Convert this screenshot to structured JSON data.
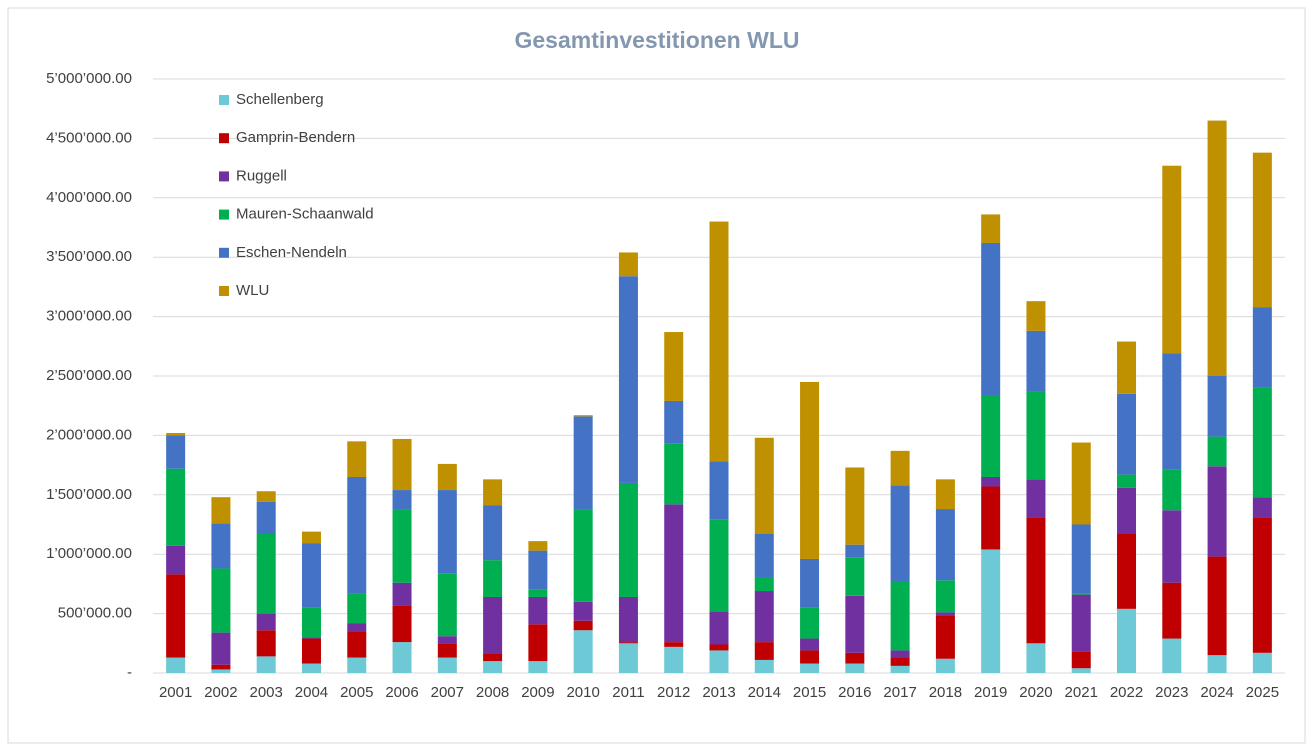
{
  "chart_data": {
    "type": "stacked_bar",
    "title": "Gesamtinvestitionen WLU",
    "categories": [
      "2001",
      "2002",
      "2003",
      "2004",
      "2005",
      "2006",
      "2007",
      "2008",
      "2009",
      "2010",
      "2011",
      "2012",
      "2013",
      "2014",
      "2015",
      "2016",
      "2017",
      "2018",
      "2019",
      "2020",
      "2021",
      "2022",
      "2023",
      "2024",
      "2025"
    ],
    "series": [
      {
        "name": "Schellenberg",
        "color": "#6cc9d5",
        "values": [
          130000,
          30000,
          140000,
          80000,
          130000,
          260000,
          130000,
          100000,
          100000,
          360000,
          250000,
          220000,
          190000,
          110000,
          80000,
          80000,
          60000,
          120000,
          1040000,
          250000,
          40000,
          540000,
          290000,
          150000,
          170000
        ]
      },
      {
        "name": "Gamprin-Bendern",
        "color": "#c00000",
        "values": [
          700000,
          40000,
          220000,
          210000,
          220000,
          310000,
          120000,
          60000,
          310000,
          80000,
          10000,
          40000,
          50000,
          150000,
          110000,
          90000,
          70000,
          360000,
          530000,
          1060000,
          140000,
          630000,
          470000,
          830000,
          1140000
        ]
      },
      {
        "name": "Ruggell",
        "color": "#7030a0",
        "values": [
          240000,
          270000,
          140000,
          10000,
          70000,
          190000,
          60000,
          480000,
          230000,
          160000,
          380000,
          1160000,
          280000,
          430000,
          100000,
          480000,
          60000,
          30000,
          80000,
          320000,
          480000,
          390000,
          610000,
          760000,
          170000
        ]
      },
      {
        "name": "Mauren-Schaanwald",
        "color": "#00b050",
        "values": [
          650000,
          540000,
          670000,
          250000,
          250000,
          620000,
          530000,
          310000,
          60000,
          780000,
          960000,
          510000,
          770000,
          110000,
          260000,
          320000,
          580000,
          270000,
          690000,
          740000,
          10000,
          110000,
          340000,
          250000,
          920000
        ]
      },
      {
        "name": "Eschen-Nendeln",
        "color": "#4472c4",
        "values": [
          280000,
          380000,
          270000,
          540000,
          980000,
          160000,
          700000,
          460000,
          330000,
          780000,
          1740000,
          360000,
          490000,
          370000,
          410000,
          110000,
          810000,
          600000,
          1280000,
          510000,
          580000,
          680000,
          980000,
          510000,
          680000
        ]
      },
      {
        "name": "WLU",
        "color": "#bf9000",
        "values": [
          20000,
          220000,
          90000,
          100000,
          300000,
          430000,
          220000,
          220000,
          80000,
          10000,
          200000,
          580000,
          2020000,
          810000,
          1490000,
          650000,
          290000,
          250000,
          240000,
          250000,
          690000,
          440000,
          1580000,
          2150000,
          1300000
        ]
      }
    ],
    "ylim": [
      0,
      5000000
    ],
    "yticks": [
      {
        "value": 0,
        "label": "-"
      },
      {
        "value": 500000,
        "label": "500’000.00"
      },
      {
        "value": 1000000,
        "label": "1’000’000.00"
      },
      {
        "value": 1500000,
        "label": "1’500’000.00"
      },
      {
        "value": 2000000,
        "label": "2’000’000.00"
      },
      {
        "value": 2500000,
        "label": "2’500’000.00"
      },
      {
        "value": 3000000,
        "label": "3’000’000.00"
      },
      {
        "value": 3500000,
        "label": "3’500’000.00"
      },
      {
        "value": 4000000,
        "label": "4’000’000.00"
      },
      {
        "value": 4500000,
        "label": "4’500’000.00"
      },
      {
        "value": 5000000,
        "label": "5’000’000.00"
      }
    ],
    "grid": true,
    "legend": "top-left"
  }
}
